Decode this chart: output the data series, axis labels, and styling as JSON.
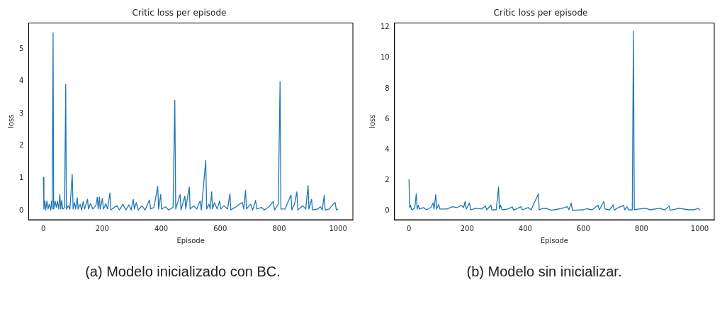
{
  "chart_data": [
    {
      "type": "line",
      "title": "Critic loss per episode",
      "xlabel": "Episode",
      "ylabel": "loss",
      "annotations": [
        "(a) Modelo inicializado con BC."
      ],
      "xlim": [
        -50,
        1050
      ],
      "ylim": [
        -0.28,
        5.8
      ],
      "xticks": [
        0,
        200,
        400,
        600,
        800,
        1000
      ],
      "yticks": [
        0,
        1,
        2,
        3,
        4,
        5
      ],
      "grid": false,
      "series": [
        {
          "color": "#1f77b4",
          "x": [
            0,
            2,
            5,
            8,
            12,
            16,
            20,
            25,
            28,
            30,
            33,
            35,
            40,
            44,
            48,
            52,
            56,
            59,
            62,
            66,
            72,
            76,
            78,
            85,
            90,
            98,
            101,
            106,
            110,
            115,
            118,
            125,
            130,
            135,
            140,
            150,
            153,
            160,
            168,
            178,
            183,
            186,
            190,
            193,
            200,
            204,
            212,
            218,
            226,
            229,
            240,
            250,
            258,
            270,
            280,
            290,
            298,
            305,
            309,
            315,
            322,
            335,
            345,
            360,
            364,
            375,
            388,
            391,
            398,
            401,
            415,
            425,
            440,
            446,
            449,
            464,
            467,
            480,
            483,
            495,
            498,
            510,
            520,
            532,
            536,
            551,
            554,
            562,
            566,
            571,
            574,
            580,
            590,
            598,
            602,
            612,
            625,
            633,
            636,
            650,
            668,
            675,
            680,
            686,
            689,
            703,
            710,
            720,
            724,
            740,
            750,
            765,
            780,
            784,
            797,
            803,
            806,
            820,
            840,
            843,
            852,
            860,
            863,
            880,
            890,
            898,
            901,
            910,
            913,
            930,
            940,
            946,
            953,
            956,
            970,
            985,
            990,
            994,
            1000
          ],
          "values": [
            1.03,
            0.05,
            0.3,
            0.02,
            0.3,
            0.05,
            0.2,
            0.02,
            0.3,
            0.05,
            5.5,
            0.05,
            0.3,
            0.1,
            0.3,
            0.05,
            0.5,
            0.05,
            0.32,
            0.05,
            0.1,
            3.9,
            0.05,
            0.15,
            0.05,
            1.12,
            0.05,
            0.25,
            0.05,
            0.4,
            0.05,
            0.2,
            0.02,
            0.28,
            0.05,
            0.35,
            0.05,
            0.22,
            0.05,
            0.15,
            0.42,
            0.05,
            0.42,
            0.05,
            0.38,
            0.05,
            0.22,
            0.05,
            0.55,
            0.02,
            0.1,
            0.15,
            0.02,
            0.2,
            0.02,
            0.18,
            0.02,
            0.35,
            0.05,
            0.25,
            0.02,
            0.15,
            0.02,
            0.33,
            0.05,
            0.1,
            0.75,
            0.05,
            0.5,
            0.05,
            0.12,
            0.02,
            0.1,
            3.42,
            0.05,
            0.5,
            0.02,
            0.45,
            0.05,
            0.73,
            0.05,
            0.15,
            0.05,
            0.3,
            0.02,
            1.55,
            0.05,
            0.2,
            0.05,
            0.58,
            0.05,
            0.25,
            0.05,
            0.3,
            0.05,
            0.15,
            0.05,
            0.52,
            0.02,
            0.1,
            0.22,
            0.25,
            0.05,
            0.63,
            0.05,
            0.2,
            0.02,
            0.32,
            0.05,
            0.1,
            0.02,
            0.12,
            0.28,
            0.02,
            0.2,
            3.99,
            0.05,
            0.05,
            0.48,
            0.02,
            0.2,
            0.58,
            0.02,
            0.15,
            0.05,
            0.78,
            0.05,
            0.35,
            0.02,
            0.05,
            0.12,
            0.02,
            0.48,
            0.02,
            0.05,
            0.22,
            0.25,
            0.02,
            0.05
          ]
        }
      ]
    },
    {
      "type": "line",
      "title": "Critic loss per episode",
      "xlabel": "Episode",
      "ylabel": "loss",
      "annotations": [
        "(b) Modelo sin inicializar."
      ],
      "xlim": [
        -50,
        1050
      ],
      "ylim": [
        -0.6,
        12.3
      ],
      "xticks": [
        0,
        200,
        400,
        600,
        800,
        1000
      ],
      "yticks": [
        0,
        2,
        4,
        6,
        8,
        10,
        12
      ],
      "grid": false,
      "series": [
        {
          "color": "#1f77b4",
          "x": [
            0,
            2,
            5,
            8,
            12,
            20,
            25,
            28,
            32,
            36,
            50,
            60,
            75,
            83,
            86,
            92,
            95,
            102,
            106,
            130,
            150,
            165,
            180,
            188,
            193,
            197,
            208,
            212,
            230,
            250,
            263,
            267,
            282,
            285,
            300,
            308,
            311,
            315,
            320,
            340,
            355,
            360,
            385,
            390,
            410,
            420,
            445,
            448,
            460,
            475,
            490,
            520,
            545,
            550,
            558,
            562,
            600,
            610,
            630,
            650,
            655,
            670,
            674,
            690,
            703,
            706,
            715,
            738,
            742,
            750,
            755,
            768,
            772,
            775,
            790,
            815,
            830,
            862,
            880,
            895,
            898,
            930,
            960,
            980,
            995,
            1000
          ],
          "values": [
            2.05,
            0.2,
            0.35,
            0.1,
            0.05,
            0.2,
            1.1,
            0.1,
            0.35,
            0.1,
            0.2,
            0.05,
            0.2,
            0.5,
            0.1,
            1.05,
            0.1,
            0.4,
            0.1,
            0.1,
            0.25,
            0.2,
            0.35,
            0.2,
            0.6,
            0.1,
            0.5,
            0.05,
            0.15,
            0.1,
            0.3,
            0.05,
            0.35,
            0.05,
            0.05,
            1.55,
            0.1,
            0.35,
            0.05,
            0.1,
            0.25,
            0.02,
            0.25,
            0.05,
            0.2,
            0.05,
            1.1,
            0.05,
            0.15,
            0.12,
            0.02,
            0.12,
            0.25,
            0.05,
            0.5,
            0.02,
            0.05,
            0.12,
            0.05,
            0.35,
            0.05,
            0.6,
            0.1,
            0.05,
            0.38,
            0.02,
            0.15,
            0.35,
            0.05,
            0.25,
            0.05,
            0.05,
            11.75,
            0.05,
            0.1,
            0.15,
            0.05,
            0.15,
            0.05,
            0.3,
            0.02,
            0.15,
            0.05,
            0.05,
            0.15,
            0.02
          ]
        }
      ]
    }
  ]
}
